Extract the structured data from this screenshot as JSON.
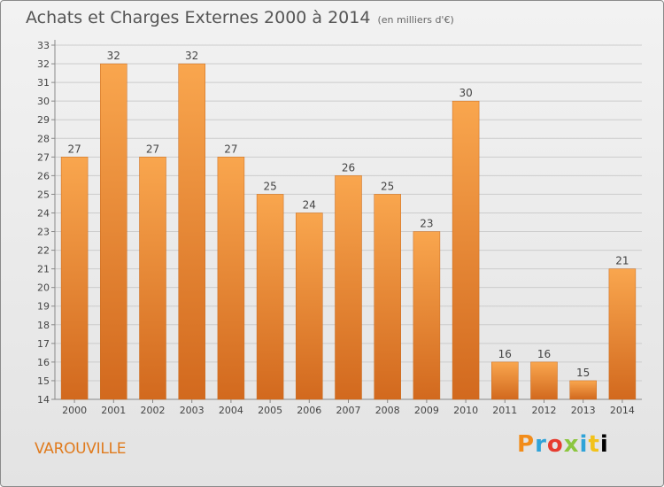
{
  "header": {
    "title": "Achats et Charges Externes 2000 à 2014",
    "subtitle": "(en milliers d'€)"
  },
  "commune": "VAROUVILLE",
  "logo_text": "Proxiti",
  "colors": {
    "bar_light": "#f9a64e",
    "bar_dark": "#d2691e",
    "grid": "#cccccc",
    "commune_text": "#e07b1e"
  },
  "chart_data": {
    "type": "bar",
    "title": "Achats et Charges Externes 2000 à 2014",
    "subtitle": "(en milliers d'€)",
    "xlabel": "",
    "ylabel": "",
    "categories": [
      "2000",
      "2001",
      "2002",
      "2003",
      "2004",
      "2005",
      "2006",
      "2007",
      "2008",
      "2009",
      "2010",
      "2011",
      "2012",
      "2013",
      "2014"
    ],
    "values": [
      27,
      32,
      27,
      32,
      27,
      25,
      24,
      26,
      25,
      23,
      30,
      16,
      16,
      15,
      21
    ],
    "ylim": [
      14,
      33
    ],
    "yticks": [
      14,
      15,
      16,
      17,
      18,
      19,
      20,
      21,
      22,
      23,
      24,
      25,
      26,
      27,
      28,
      29,
      30,
      31,
      32,
      33
    ],
    "grid": true,
    "data_labels": true
  }
}
